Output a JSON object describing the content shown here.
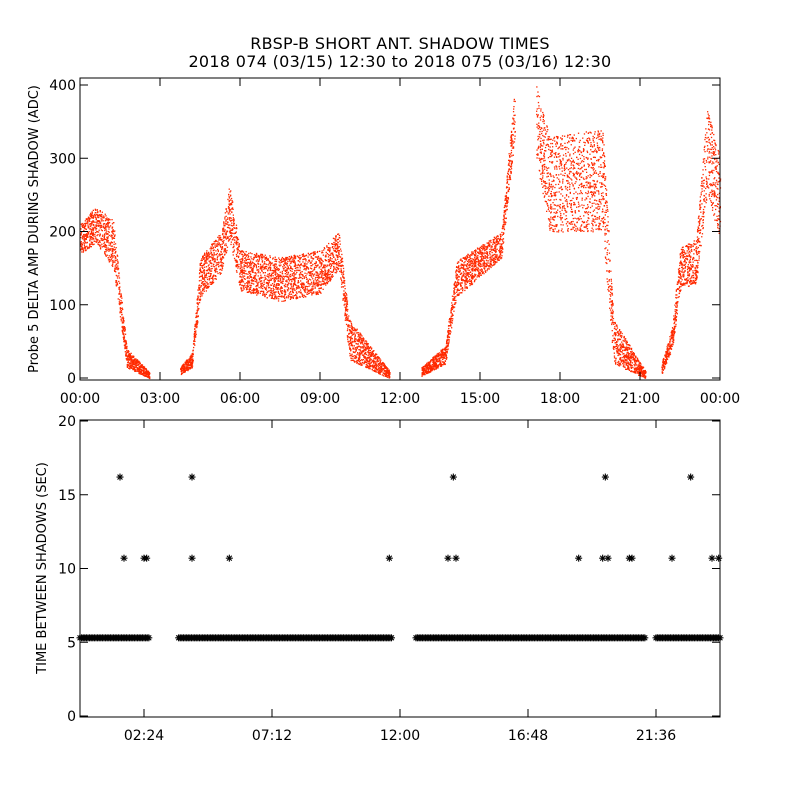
{
  "header": {
    "title": "RBSP-B SHORT ANT. SHADOW TIMES",
    "subtitle": "2018 074 (03/15) 12:30 to 2018 075 (03/16) 12:30"
  },
  "colors": {
    "series_top": "#ff2a00",
    "series_bottom": "#000000",
    "axes": "#000000"
  },
  "chart_data": [
    {
      "type": "scatter",
      "ylabel": "Probe 5 DELTA AMP DURING SHADOW (ADC)",
      "xlabel": "",
      "x_unit": "hours",
      "xlim": [
        0,
        24
      ],
      "ylim": [
        0,
        400
      ],
      "x_ticks": [
        0,
        3,
        6,
        9,
        12,
        15,
        18,
        21,
        24
      ],
      "x_tick_labels": [
        "00:00",
        "03:00",
        "06:00",
        "09:00",
        "12:00",
        "15:00",
        "18:00",
        "21:00",
        "00:00"
      ],
      "y_ticks": [
        0,
        100,
        200,
        300,
        400
      ],
      "y_tick_labels": [
        "0",
        "100",
        "200",
        "300",
        "400"
      ],
      "series": [
        {
          "color": "#ff2a00",
          "envelope": [
            {
              "x": [
                0.0,
                0.6
              ],
              "y": [
                [
                  170,
                  210
                ],
                [
                  185,
                  235
                ]
              ]
            },
            {
              "x": [
                0.6,
                1.25
              ],
              "y": [
                [
                  185,
                  235
                ],
                [
                  150,
                  215
                ]
              ]
            },
            {
              "x": [
                1.25,
                1.75
              ],
              "y": [
                [
                  150,
                  215
                ],
                [
                  15,
                  40
                ]
              ]
            },
            {
              "x": [
                1.75,
                2.6
              ],
              "y": [
                [
                  15,
                  40
                ],
                [
                  0,
                  8
                ]
              ]
            },
            {
              "x": [
                3.75,
                4.2
              ],
              "y": [
                [
                  5,
                  15
                ],
                [
                  15,
                  35
                ]
              ]
            },
            {
              "x": [
                4.2,
                4.5
              ],
              "y": [
                [
                  15,
                  35
                ],
                [
                  110,
                  165
                ]
              ]
            },
            {
              "x": [
                4.5,
                5.3
              ],
              "y": [
                [
                  110,
                  165
                ],
                [
                  145,
                  200
                ]
              ]
            },
            {
              "x": [
                5.3,
                5.6
              ],
              "y": [
                [
                  145,
                  200
                ],
                [
                  190,
                  265
                ]
              ]
            },
            {
              "x": [
                5.6,
                6.0
              ],
              "y": [
                [
                  190,
                  265
                ],
                [
                  120,
                  175
                ]
              ]
            },
            {
              "x": [
                6.0,
                7.5
              ],
              "y": [
                [
                  120,
                  175
                ],
                [
                  105,
                  165
                ]
              ]
            },
            {
              "x": [
                7.5,
                9.0
              ],
              "y": [
                [
                  105,
                  165
                ],
                [
                  115,
                  175
                ]
              ]
            },
            {
              "x": [
                9.0,
                9.7
              ],
              "y": [
                [
                  115,
                  175
                ],
                [
                  150,
                  200
                ]
              ]
            },
            {
              "x": [
                9.7,
                10.1
              ],
              "y": [
                [
                  150,
                  200
                ],
                [
                  25,
                  80
                ]
              ]
            },
            {
              "x": [
                10.1,
                11.6
              ],
              "y": [
                [
                  25,
                  80
                ],
                [
                  0,
                  10
                ]
              ]
            },
            {
              "x": [
                12.8,
                13.7
              ],
              "y": [
                [
                  3,
                  15
                ],
                [
                  20,
                  45
                ]
              ]
            },
            {
              "x": [
                13.7,
                14.1
              ],
              "y": [
                [
                  20,
                  45
                ],
                [
                  110,
                  160
                ]
              ]
            },
            {
              "x": [
                14.1,
                15.8
              ],
              "y": [
                [
                  110,
                  160
                ],
                [
                  165,
                  200
                ]
              ]
            },
            {
              "x": [
                15.8,
                16.3
              ],
              "y": [
                [
                  165,
                  200
                ],
                [
                  330,
                  400
                ]
              ]
            },
            {
              "x": [
                17.1,
                17.6
              ],
              "y": [
                [
                  300,
                  400
                ],
                [
                  200,
                  330
                ]
              ]
            },
            {
              "x": [
                17.6,
                19.6
              ],
              "y": [
                [
                  200,
                  330
                ],
                [
                  200,
                  340
                ]
              ]
            },
            {
              "x": [
                19.6,
                20.0
              ],
              "y": [
                [
                  200,
                  340
                ],
                [
                  20,
                  80
                ]
              ]
            },
            {
              "x": [
                20.0,
                21.2
              ],
              "y": [
                [
                  20,
                  80
                ],
                [
                  0,
                  10
                ]
              ]
            },
            {
              "x": [
                21.8,
                22.2
              ],
              "y": [
                [
                  5,
                  20
                ],
                [
                  40,
                  70
                ]
              ]
            },
            {
              "x": [
                22.2,
                22.5
              ],
              "y": [
                [
                  40,
                  70
                ],
                [
                  120,
                  180
                ]
              ]
            },
            {
              "x": [
                22.5,
                23.1
              ],
              "y": [
                [
                  120,
                  180
                ],
                [
                  130,
                  190
                ]
              ]
            },
            {
              "x": [
                23.1,
                23.5
              ],
              "y": [
                [
                  130,
                  190
                ],
                [
                  250,
                  370
                ]
              ]
            },
            {
              "x": [
                23.5,
                24.0
              ],
              "y": [
                [
                  250,
                  370
                ],
                [
                  190,
                  300
                ]
              ]
            }
          ]
        }
      ]
    },
    {
      "type": "scatter",
      "ylabel": "TIME BETWEEN SHADOWS (SEC)",
      "xlabel": "",
      "x_unit": "hours",
      "xlim": [
        0,
        24
      ],
      "ylim": [
        0,
        20
      ],
      "x_ticks": [
        2.4,
        7.2,
        12.0,
        16.8,
        21.6
      ],
      "x_tick_labels": [
        "02:24",
        "07:12",
        "12:00",
        "16:48",
        "21:36"
      ],
      "y_ticks": [
        0,
        5,
        10,
        15,
        20
      ],
      "y_tick_labels": [
        "0",
        "5",
        "10",
        "15",
        "20"
      ],
      "series": [
        {
          "marker": "*",
          "color": "#000000",
          "baseline_value": 5.3,
          "baseline_ranges": [
            [
              0.0,
              2.6
            ],
            [
              3.7,
              11.7
            ],
            [
              12.6,
              21.2
            ],
            [
              21.6,
              24.0
            ]
          ],
          "points": [
            {
              "x": 1.5,
              "y": 16.2
            },
            {
              "x": 1.65,
              "y": 10.7
            },
            {
              "x": 2.4,
              "y": 10.7
            },
            {
              "x": 2.5,
              "y": 10.7
            },
            {
              "x": 4.2,
              "y": 16.2
            },
            {
              "x": 4.2,
              "y": 10.7
            },
            {
              "x": 5.6,
              "y": 10.7
            },
            {
              "x": 11.6,
              "y": 10.7
            },
            {
              "x": 13.8,
              "y": 10.7
            },
            {
              "x": 14.0,
              "y": 16.2
            },
            {
              "x": 14.1,
              "y": 10.7
            },
            {
              "x": 18.7,
              "y": 10.7
            },
            {
              "x": 19.6,
              "y": 10.7
            },
            {
              "x": 19.7,
              "y": 16.2
            },
            {
              "x": 19.8,
              "y": 10.7
            },
            {
              "x": 20.6,
              "y": 10.7
            },
            {
              "x": 20.7,
              "y": 10.7
            },
            {
              "x": 22.2,
              "y": 10.7
            },
            {
              "x": 22.9,
              "y": 16.2
            },
            {
              "x": 23.7,
              "y": 10.7
            },
            {
              "x": 23.95,
              "y": 10.7
            }
          ]
        }
      ]
    }
  ]
}
